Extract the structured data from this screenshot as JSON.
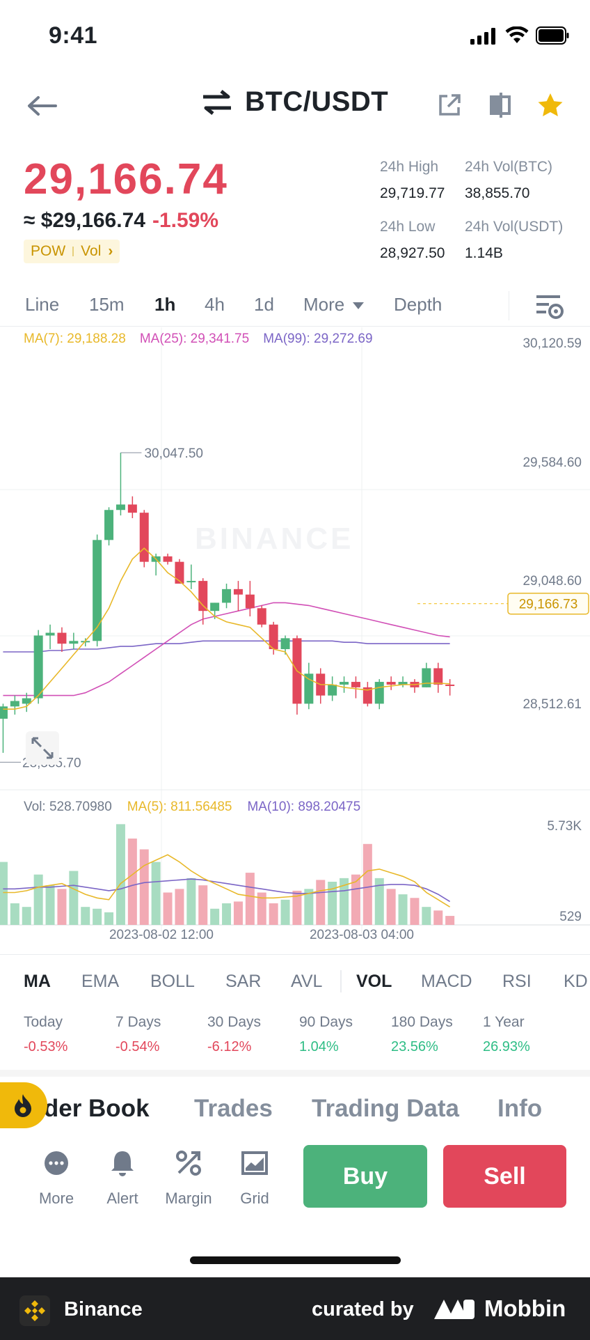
{
  "status_bar": {
    "time": "9:41"
  },
  "header": {
    "pair": "BTC/USDT"
  },
  "price": {
    "last": "29,166.74",
    "usd": "≈ $29,166.74",
    "change": "-1.59%",
    "tag_pow": "POW",
    "tag_vol": "Vol",
    "chevron": "›"
  },
  "stats": {
    "high_label": "24h High",
    "high_value": "29,719.77",
    "volbtc_label": "24h Vol(BTC)",
    "volbtc_value": "38,855.70",
    "low_label": "24h Low",
    "low_value": "28,927.50",
    "volusdt_label": "24h Vol(USDT)",
    "volusdt_value": "1.14B"
  },
  "timeframes": {
    "line": "Line",
    "m15": "15m",
    "h1": "1h",
    "h4": "4h",
    "d1": "1d",
    "more": "More",
    "depth": "Depth"
  },
  "chart_data": {
    "type": "candlestick",
    "interval": "1h",
    "ma_legend": {
      "ma7": "MA(7): 29,188.28",
      "ma25": "MA(25): 29,341.75",
      "ma99": "MA(99): 29,272.69"
    },
    "price_axis": [
      "30,120.59",
      "29,584.60",
      "29,048.60",
      "28,512.61"
    ],
    "ylim": [
      28512.61,
      30120.59
    ],
    "high_marker": "30,047.50",
    "low_marker": "28,585.70",
    "last_price_label": "29,166.73",
    "time_labels": [
      "2023-08-02 12:00",
      "2023-08-03 04:00"
    ],
    "candles": [
      {
        "o": 28745,
        "h": 28800,
        "l": 28620,
        "c": 28790
      },
      {
        "o": 28790,
        "h": 28830,
        "l": 28760,
        "c": 28810
      },
      {
        "o": 28800,
        "h": 28840,
        "l": 28770,
        "c": 28820
      },
      {
        "o": 28820,
        "h": 29070,
        "l": 28800,
        "c": 29050
      },
      {
        "o": 29050,
        "h": 29090,
        "l": 29000,
        "c": 29060
      },
      {
        "o": 29060,
        "h": 29080,
        "l": 28990,
        "c": 29020
      },
      {
        "o": 29020,
        "h": 29060,
        "l": 29000,
        "c": 29030
      },
      {
        "o": 29030,
        "h": 29040,
        "l": 29010,
        "c": 29030
      },
      {
        "o": 29030,
        "h": 29420,
        "l": 29010,
        "c": 29400
      },
      {
        "o": 29400,
        "h": 29520,
        "l": 29380,
        "c": 29510
      },
      {
        "o": 29510,
        "h": 29720,
        "l": 29490,
        "c": 29530
      },
      {
        "o": 29530,
        "h": 29560,
        "l": 29480,
        "c": 29500
      },
      {
        "o": 29500,
        "h": 29510,
        "l": 29300,
        "c": 29320
      },
      {
        "o": 29320,
        "h": 29350,
        "l": 29270,
        "c": 29340
      },
      {
        "o": 29340,
        "h": 29350,
        "l": 29310,
        "c": 29320
      },
      {
        "o": 29320,
        "h": 29330,
        "l": 29250,
        "c": 29240
      },
      {
        "o": 29250,
        "h": 29310,
        "l": 29220,
        "c": 29250
      },
      {
        "o": 29250,
        "h": 29260,
        "l": 29090,
        "c": 29140
      },
      {
        "o": 29140,
        "h": 29170,
        "l": 29110,
        "c": 29170
      },
      {
        "o": 29170,
        "h": 29240,
        "l": 29150,
        "c": 29220
      },
      {
        "o": 29220,
        "h": 29250,
        "l": 29140,
        "c": 29200
      },
      {
        "o": 29200,
        "h": 29250,
        "l": 29120,
        "c": 29150
      },
      {
        "o": 29150,
        "h": 29160,
        "l": 29080,
        "c": 29090
      },
      {
        "o": 29090,
        "h": 29100,
        "l": 28980,
        "c": 29000
      },
      {
        "o": 29000,
        "h": 29050,
        "l": 28980,
        "c": 29040
      },
      {
        "o": 29040,
        "h": 29050,
        "l": 28760,
        "c": 28800
      },
      {
        "o": 28800,
        "h": 28950,
        "l": 28780,
        "c": 28910
      },
      {
        "o": 28910,
        "h": 28930,
        "l": 28800,
        "c": 28830
      },
      {
        "o": 28830,
        "h": 28900,
        "l": 28810,
        "c": 28870
      },
      {
        "o": 28870,
        "h": 28900,
        "l": 28840,
        "c": 28880
      },
      {
        "o": 28880,
        "h": 28900,
        "l": 28820,
        "c": 28860
      },
      {
        "o": 28860,
        "h": 28880,
        "l": 28790,
        "c": 28800
      },
      {
        "o": 28800,
        "h": 28890,
        "l": 28780,
        "c": 28880
      },
      {
        "o": 28880,
        "h": 28900,
        "l": 28850,
        "c": 28870
      },
      {
        "o": 28870,
        "h": 28900,
        "l": 28860,
        "c": 28880
      },
      {
        "o": 28880,
        "h": 28890,
        "l": 28840,
        "c": 28860
      },
      {
        "o": 28860,
        "h": 28950,
        "l": 28860,
        "c": 28930
      },
      {
        "o": 28930,
        "h": 28950,
        "l": 28840,
        "c": 28870
      },
      {
        "o": 28870,
        "h": 28890,
        "l": 28830,
        "c": 28867
      }
    ],
    "ma7": [
      28780,
      28780,
      28790,
      28830,
      28880,
      28930,
      28980,
      29030,
      29080,
      29150,
      29250,
      29330,
      29370,
      29330,
      29280,
      29250,
      29210,
      29160,
      29120,
      29100,
      29090,
      29080,
      29040,
      29000,
      28990,
      28920,
      28890,
      28870,
      28870,
      28860,
      28855,
      28850,
      28860,
      28865,
      28870,
      28870,
      28875,
      28875,
      28873
    ],
    "ma25": [
      28830,
      28830,
      28830,
      28830,
      28830,
      28830,
      28830,
      28840,
      28860,
      28880,
      28910,
      28940,
      28970,
      29000,
      29030,
      29060,
      29090,
      29110,
      29120,
      29130,
      29140,
      29150,
      29160,
      29170,
      29170,
      29165,
      29160,
      29150,
      29140,
      29130,
      29120,
      29110,
      29100,
      29090,
      29080,
      29070,
      29060,
      29050,
      29045
    ],
    "ma99": [
      28990,
      28990,
      28990,
      28990,
      28995,
      28995,
      29000,
      29000,
      29000,
      29005,
      29010,
      29010,
      29015,
      29020,
      29020,
      29020,
      29025,
      29030,
      29030,
      29030,
      29030,
      29030,
      29030,
      29030,
      29030,
      29030,
      29030,
      29030,
      29030,
      29025,
      29025,
      29020,
      29020,
      29020,
      29020,
      29020,
      29020,
      29020,
      29020
    ],
    "volume": {
      "legend_vol": "Vol: 528.70980",
      "legend_ma5": "MA(5): 811.56485",
      "legend_ma10": "MA(10): 898.20475",
      "axis_labels": [
        "5.73K",
        "529"
      ],
      "ylim": [
        0,
        5730
      ],
      "bars": [
        3500,
        1200,
        1000,
        2800,
        2200,
        2000,
        3000,
        1000,
        900,
        700,
        5600,
        4800,
        4200,
        3500,
        1800,
        2000,
        2600,
        2200,
        900,
        1200,
        1300,
        2900,
        1800,
        1200,
        1400,
        1900,
        2000,
        2500,
        2400,
        2600,
        2800,
        4500,
        2600,
        2000,
        1700,
        1500,
        1000,
        800,
        500
      ],
      "ma5": [
        1800,
        1800,
        1900,
        2100,
        2200,
        2300,
        2000,
        1700,
        1500,
        1400,
        2300,
        2800,
        3300,
        3600,
        3900,
        3500,
        3000,
        2600,
        2300,
        2000,
        1700,
        1600,
        1500,
        1500,
        1550,
        1600,
        1750,
        1900,
        2000,
        2200,
        2400,
        3000,
        3100,
        2900,
        2700,
        2400,
        1800,
        1400,
        1000
      ],
      "ma10": [
        2000,
        2000,
        2050,
        2100,
        2100,
        2150,
        2200,
        2100,
        2000,
        1900,
        2000,
        2200,
        2350,
        2400,
        2450,
        2500,
        2550,
        2500,
        2400,
        2300,
        2200,
        2100,
        2000,
        1900,
        1800,
        1750,
        1750,
        1800,
        1850,
        1900,
        2000,
        2100,
        2200,
        2250,
        2250,
        2200,
        2000,
        1700,
        1300
      ]
    }
  },
  "indicators": {
    "ma": "MA",
    "ema": "EMA",
    "boll": "BOLL",
    "sar": "SAR",
    "avl": "AVL",
    "vol": "VOL",
    "macd": "MACD",
    "rsi": "RSI",
    "kd": "KD"
  },
  "performance": [
    {
      "label": "Today",
      "value": "-0.53%",
      "sign": "neg"
    },
    {
      "label": "7 Days",
      "value": "-0.54%",
      "sign": "neg"
    },
    {
      "label": "30 Days",
      "value": "-6.12%",
      "sign": "neg"
    },
    {
      "label": "90 Days",
      "value": "1.04%",
      "sign": "pos"
    },
    {
      "label": "180 Days",
      "value": "23.56%",
      "sign": "pos"
    },
    {
      "label": "1 Year",
      "value": "26.93%",
      "sign": "pos"
    }
  ],
  "bottom_tabs": {
    "order_book": "Order Book",
    "trades": "Trades",
    "trading_data": "Trading Data",
    "info": "Info"
  },
  "actions": {
    "more": "More",
    "alert": "Alert",
    "margin": "Margin",
    "grid": "Grid",
    "buy": "Buy",
    "sell": "Sell"
  },
  "footer": {
    "brand": "Binance",
    "curated": "curated by",
    "mobbin": "Mobbin"
  },
  "colors": {
    "up": "#4cb27b",
    "down": "#e2475b",
    "ma7": "#e8b829",
    "ma25": "#d14fb6",
    "ma99": "#7b65c6",
    "accent": "#f0b90b"
  }
}
